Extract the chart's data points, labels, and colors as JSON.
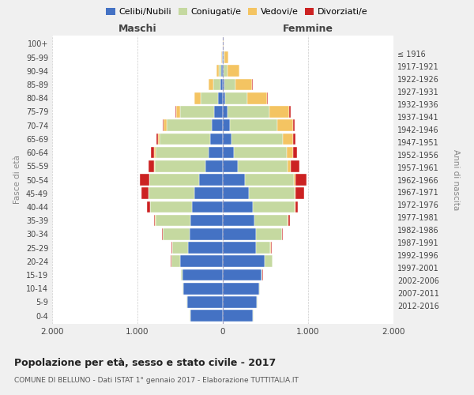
{
  "age_groups": [
    "0-4",
    "5-9",
    "10-14",
    "15-19",
    "20-24",
    "25-29",
    "30-34",
    "35-39",
    "40-44",
    "45-49",
    "50-54",
    "55-59",
    "60-64",
    "65-69",
    "70-74",
    "75-79",
    "80-84",
    "85-89",
    "90-94",
    "95-99",
    "100+"
  ],
  "birth_years": [
    "2012-2016",
    "2007-2011",
    "2002-2006",
    "1997-2001",
    "1992-1996",
    "1987-1991",
    "1982-1986",
    "1977-1981",
    "1972-1976",
    "1967-1971",
    "1962-1966",
    "1957-1961",
    "1952-1956",
    "1947-1951",
    "1942-1946",
    "1937-1941",
    "1932-1936",
    "1927-1931",
    "1922-1926",
    "1917-1921",
    "≤ 1916"
  ],
  "maschi_celibi": [
    380,
    420,
    460,
    470,
    500,
    410,
    390,
    380,
    360,
    330,
    280,
    200,
    170,
    150,
    130,
    100,
    60,
    30,
    15,
    5,
    2
  ],
  "maschi_coniugati": [
    5,
    5,
    10,
    20,
    100,
    180,
    310,
    410,
    490,
    540,
    580,
    600,
    620,
    590,
    530,
    400,
    200,
    80,
    30,
    8,
    2
  ],
  "maschi_vedovi": [
    0,
    0,
    0,
    2,
    3,
    2,
    2,
    3,
    5,
    5,
    5,
    10,
    15,
    20,
    30,
    50,
    70,
    60,
    30,
    5,
    0
  ],
  "maschi_divorziati": [
    0,
    0,
    0,
    2,
    5,
    8,
    10,
    15,
    30,
    80,
    110,
    60,
    40,
    20,
    15,
    10,
    5,
    0,
    0,
    0,
    0
  ],
  "femmine_celibi": [
    355,
    400,
    430,
    450,
    490,
    390,
    390,
    370,
    350,
    310,
    260,
    180,
    130,
    100,
    80,
    60,
    25,
    15,
    10,
    5,
    2
  ],
  "femmine_coniugati": [
    4,
    5,
    8,
    15,
    90,
    170,
    300,
    390,
    490,
    530,
    570,
    580,
    620,
    600,
    560,
    490,
    260,
    130,
    50,
    10,
    2
  ],
  "femmine_vedovi": [
    0,
    0,
    0,
    1,
    2,
    2,
    3,
    5,
    8,
    15,
    25,
    40,
    70,
    120,
    180,
    230,
    230,
    200,
    130,
    50,
    5
  ],
  "femmine_divorziati": [
    0,
    0,
    0,
    2,
    5,
    8,
    12,
    20,
    35,
    100,
    130,
    100,
    50,
    30,
    20,
    15,
    10,
    5,
    5,
    0,
    0
  ],
  "colors": {
    "celibi": "#4472C4",
    "coniugati": "#C5D9A0",
    "vedovi": "#F4C462",
    "divorziati": "#CC2222"
  },
  "title": "Popolazione per età, sesso e stato civile - 2017",
  "subtitle": "COMUNE DI BELLUNO - Dati ISTAT 1° gennaio 2017 - Elaborazione TUTTITALIA.IT",
  "ylabel_left": "Fasce di età",
  "ylabel_right": "Anni di nascita",
  "xlabel_left": "Maschi",
  "xlabel_right": "Femmine",
  "xlim": 2000,
  "bg_color": "#f0f0f0",
  "plot_bg": "#ffffff",
  "grid_color": "#cccccc"
}
